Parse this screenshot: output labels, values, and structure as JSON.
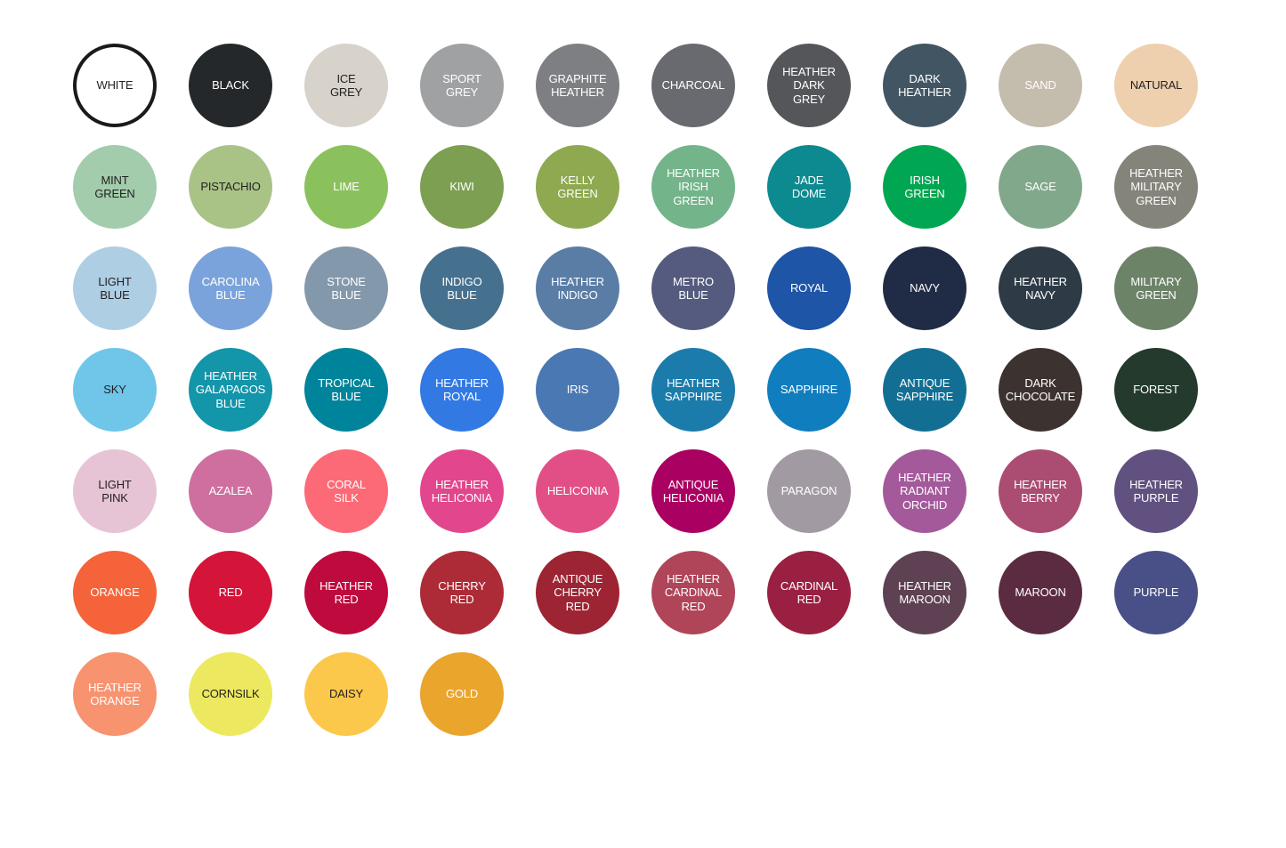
{
  "page": {
    "background_color": "#ffffff",
    "label_dark_text_color": "#231f20",
    "label_light_text_color": "#ffffff"
  },
  "palette": {
    "columns": 10,
    "swatches": [
      {
        "label": "WHITE",
        "color": "#ffffff",
        "text": "#231f20",
        "border": "#1a1a1a"
      },
      {
        "label": "BLACK",
        "color": "#25282a",
        "text": "#ffffff"
      },
      {
        "label": "ICE GREY",
        "color": "#d7d2ca",
        "text": "#231f20"
      },
      {
        "label": "SPORT GREY",
        "color": "#9fa1a3",
        "text": "#ffffff"
      },
      {
        "label": "GRAPHITE HEATHER",
        "color": "#7e7f83",
        "text": "#ffffff"
      },
      {
        "label": "CHARCOAL",
        "color": "#686a6f",
        "text": "#ffffff"
      },
      {
        "label": "HEATHER DARK GREY",
        "color": "#55565a",
        "text": "#ffffff"
      },
      {
        "label": "DARK HEATHER",
        "color": "#425563",
        "text": "#ffffff"
      },
      {
        "label": "SAND",
        "color": "#c4bcac",
        "text": "#ffffff"
      },
      {
        "label": "NATURAL",
        "color": "#eed0ae",
        "text": "#231f20"
      },
      {
        "label": "MINT GREEN",
        "color": "#a2ccab",
        "text": "#231f20"
      },
      {
        "label": "PISTACHIO",
        "color": "#a9c387",
        "text": "#231f20"
      },
      {
        "label": "LIME",
        "color": "#8bc15c",
        "text": "#ffffff"
      },
      {
        "label": "KIWI",
        "color": "#7c9f51",
        "text": "#ffffff"
      },
      {
        "label": "KELLY GREEN",
        "color": "#8ea94f",
        "text": "#ffffff"
      },
      {
        "label": "HEATHER IRISH GREEN",
        "color": "#73b48a",
        "text": "#ffffff"
      },
      {
        "label": "JADE DOME",
        "color": "#0c8a8f",
        "text": "#ffffff"
      },
      {
        "label": "IRISH GREEN",
        "color": "#00a651",
        "text": "#ffffff"
      },
      {
        "label": "SAGE",
        "color": "#82a88b",
        "text": "#ffffff"
      },
      {
        "label": "HEATHER MILITARY GREEN",
        "color": "#84847b",
        "text": "#ffffff"
      },
      {
        "label": "LIGHT BLUE",
        "color": "#aecee4",
        "text": "#231f20"
      },
      {
        "label": "CAROLINA BLUE",
        "color": "#7aa3db",
        "text": "#ffffff"
      },
      {
        "label": "STONE BLUE",
        "color": "#8398ab",
        "text": "#ffffff"
      },
      {
        "label": "INDIGO BLUE",
        "color": "#46718e",
        "text": "#ffffff"
      },
      {
        "label": "HEATHER INDIGO",
        "color": "#5a7da6",
        "text": "#ffffff"
      },
      {
        "label": "METRO BLUE",
        "color": "#555b7e",
        "text": "#ffffff"
      },
      {
        "label": "ROYAL",
        "color": "#1e55a6",
        "text": "#ffffff"
      },
      {
        "label": "NAVY",
        "color": "#202b45",
        "text": "#ffffff"
      },
      {
        "label": "HEATHER NAVY",
        "color": "#2e3b46",
        "text": "#ffffff"
      },
      {
        "label": "MILITARY GREEN",
        "color": "#6c8368",
        "text": "#ffffff"
      },
      {
        "label": "SKY",
        "color": "#6fc6e9",
        "text": "#231f20"
      },
      {
        "label": "HEATHER GALAPAGOS BLUE",
        "color": "#1395aa",
        "text": "#ffffff"
      },
      {
        "label": "TROPICAL BLUE",
        "color": "#00849b",
        "text": "#ffffff"
      },
      {
        "label": "HEATHER ROYAL",
        "color": "#3279e3",
        "text": "#ffffff"
      },
      {
        "label": "IRIS",
        "color": "#4a78b2",
        "text": "#ffffff"
      },
      {
        "label": "HEATHER SAPPHIRE",
        "color": "#1b7cab",
        "text": "#ffffff"
      },
      {
        "label": "SAPPHIRE",
        "color": "#107dbe",
        "text": "#ffffff"
      },
      {
        "label": "ANTIQUE SAPPHIRE",
        "color": "#126f93",
        "text": "#ffffff"
      },
      {
        "label": "DARK CHOCOLATE",
        "color": "#3c322f",
        "text": "#ffffff"
      },
      {
        "label": "FOREST",
        "color": "#233a2d",
        "text": "#ffffff"
      },
      {
        "label": "LIGHT PINK",
        "color": "#e6c4d5",
        "text": "#231f20"
      },
      {
        "label": "AZALEA",
        "color": "#ce6f9f",
        "text": "#ffffff"
      },
      {
        "label": "CORAL SILK",
        "color": "#fb6a76",
        "text": "#ffffff"
      },
      {
        "label": "HEATHER HELICONIA",
        "color": "#e2468c",
        "text": "#ffffff"
      },
      {
        "label": "HELICONIA",
        "color": "#e24f86",
        "text": "#ffffff"
      },
      {
        "label": "ANTIQUE HELICONIA",
        "color": "#aa0061",
        "text": "#ffffff"
      },
      {
        "label": "PARAGON",
        "color": "#a29aa2",
        "text": "#ffffff"
      },
      {
        "label": "HEATHER RADIANT ORCHID",
        "color": "#a4599b",
        "text": "#ffffff"
      },
      {
        "label": "HEATHER BERRY",
        "color": "#ab4c73",
        "text": "#ffffff"
      },
      {
        "label": "HEATHER PURPLE",
        "color": "#615181",
        "text": "#ffffff"
      },
      {
        "label": "ORANGE",
        "color": "#f4633a",
        "text": "#ffffff"
      },
      {
        "label": "RED",
        "color": "#d41438",
        "text": "#ffffff"
      },
      {
        "label": "HEATHER RED",
        "color": "#bf0a3e",
        "text": "#ffffff"
      },
      {
        "label": "CHERRY RED",
        "color": "#ac2b37",
        "text": "#ffffff"
      },
      {
        "label": "ANTIQUE CHERRY RED",
        "color": "#9c2433",
        "text": "#ffffff"
      },
      {
        "label": "HEATHER CARDINAL RED",
        "color": "#b04459",
        "text": "#ffffff"
      },
      {
        "label": "CARDINAL RED",
        "color": "#992040",
        "text": "#ffffff"
      },
      {
        "label": "HEATHER MAROON",
        "color": "#5e4152",
        "text": "#ffffff"
      },
      {
        "label": "MAROON",
        "color": "#5b2b42",
        "text": "#ffffff"
      },
      {
        "label": "PURPLE",
        "color": "#485087",
        "text": "#ffffff"
      },
      {
        "label": "HEATHER ORANGE",
        "color": "#f8936f",
        "text": "#ffffff"
      },
      {
        "label": "CORNSILK",
        "color": "#ece961",
        "text": "#231f20"
      },
      {
        "label": "DAISY",
        "color": "#fbc84b",
        "text": "#231f20"
      },
      {
        "label": "GOLD",
        "color": "#eaa52c",
        "text": "#ffffff"
      }
    ]
  }
}
